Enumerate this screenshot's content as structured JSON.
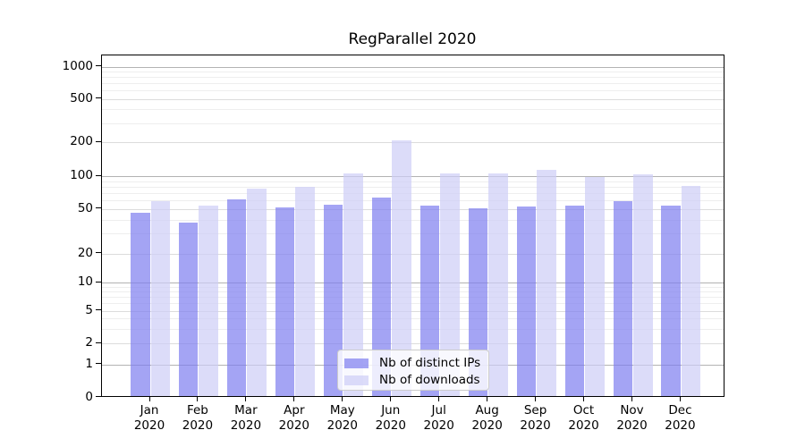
{
  "figure_title": "RegParallel 2020",
  "legend": {
    "items": [
      {
        "label": "Nb of distinct IPs"
      },
      {
        "label": "Nb of downloads"
      }
    ]
  },
  "chart_data": {
    "type": "bar",
    "title": "RegParallel 2020",
    "categories": [
      "Jan 2020",
      "Feb 2020",
      "Mar 2020",
      "Apr 2020",
      "May 2020",
      "Jun 2020",
      "Jul 2020",
      "Aug 2020",
      "Sep 2020",
      "Oct 2020",
      "Nov 2020",
      "Dec 2020"
    ],
    "x_tick_months": [
      "Jan",
      "Feb",
      "Mar",
      "Apr",
      "May",
      "Jun",
      "Jul",
      "Aug",
      "Sep",
      "Oct",
      "Nov",
      "Dec"
    ],
    "x_tick_year": "2020",
    "series": [
      {
        "name": "Nb of distinct IPs",
        "color": "rgba(125,125,239,0.7)",
        "key": "ips",
        "values": [
          45,
          37,
          60,
          51,
          54,
          62,
          53,
          50,
          52,
          53,
          58,
          53
        ]
      },
      {
        "name": "Nb of downloads",
        "color": "rgba(205,205,247,0.7)",
        "key": "downloads",
        "values": [
          58,
          53,
          75,
          78,
          104,
          205,
          104,
          103,
          112,
          96,
          102,
          79
        ]
      }
    ],
    "xlabel": "",
    "ylabel": "",
    "yscale": "symlog",
    "ytick_values": [
      0,
      1,
      2,
      5,
      10,
      20,
      50,
      100,
      200,
      500,
      1000
    ],
    "ytick_labels": [
      "0",
      "1",
      "2",
      "5",
      "10",
      "20",
      "50",
      "100",
      "200",
      "500",
      "1000"
    ],
    "ylim": [
      0,
      1250
    ],
    "grid": true,
    "legend_position": "lower center"
  }
}
